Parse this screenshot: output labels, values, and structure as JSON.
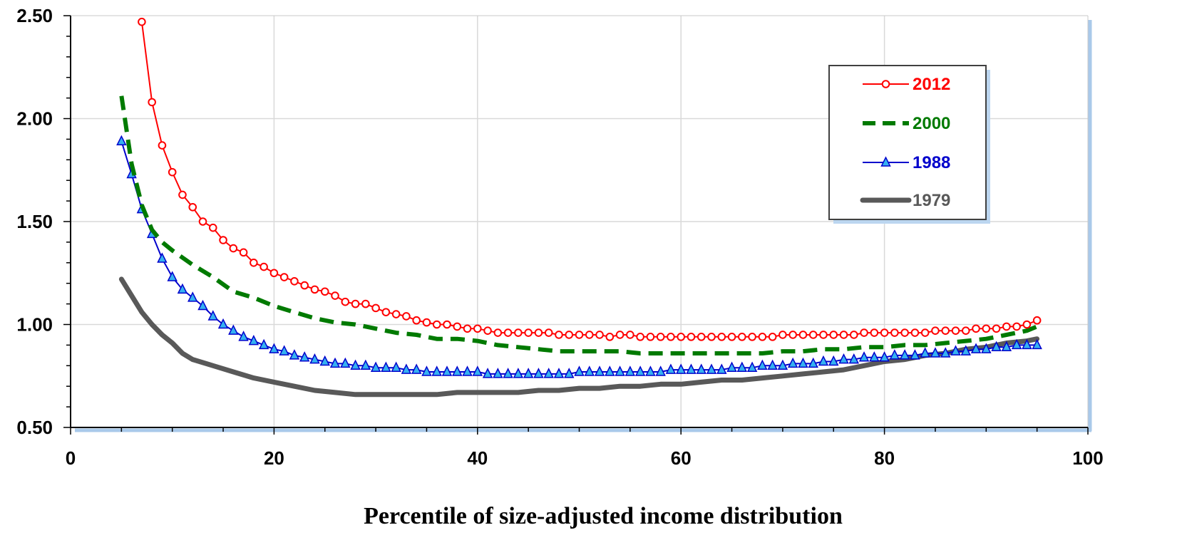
{
  "chart_data": {
    "type": "line",
    "title": "",
    "xlabel": "Percentile of size-adjusted income distribution",
    "ylabel": "",
    "xlim": [
      0,
      100
    ],
    "ylim": [
      0.5,
      2.5
    ],
    "x_ticks": [
      "0",
      "20",
      "40",
      "60",
      "80",
      "100"
    ],
    "y_ticks": [
      "0.50",
      "1.00",
      "1.50",
      "2.00",
      "2.50"
    ],
    "grid": true,
    "legend_position": "top-right",
    "series": [
      {
        "name": "2012",
        "color": "#ff0000",
        "style": "solid-circle-markers",
        "x": [
          7,
          8,
          9,
          10,
          11,
          12,
          13,
          14,
          15,
          16,
          17,
          18,
          19,
          20,
          21,
          22,
          23,
          24,
          25,
          26,
          27,
          28,
          29,
          30,
          31,
          32,
          33,
          34,
          35,
          36,
          37,
          38,
          39,
          40,
          41,
          42,
          43,
          44,
          45,
          46,
          47,
          48,
          49,
          50,
          51,
          52,
          53,
          54,
          55,
          56,
          57,
          58,
          59,
          60,
          61,
          62,
          63,
          64,
          65,
          66,
          67,
          68,
          69,
          70,
          71,
          72,
          73,
          74,
          75,
          76,
          77,
          78,
          79,
          80,
          81,
          82,
          83,
          84,
          85,
          86,
          87,
          88,
          89,
          90,
          91,
          92,
          93,
          94,
          95
        ],
        "values": [
          2.47,
          2.08,
          1.87,
          1.74,
          1.63,
          1.57,
          1.5,
          1.47,
          1.41,
          1.37,
          1.35,
          1.3,
          1.28,
          1.25,
          1.23,
          1.21,
          1.19,
          1.17,
          1.16,
          1.14,
          1.11,
          1.1,
          1.1,
          1.08,
          1.06,
          1.05,
          1.04,
          1.02,
          1.01,
          1.0,
          1.0,
          0.99,
          0.98,
          0.98,
          0.97,
          0.96,
          0.96,
          0.96,
          0.96,
          0.96,
          0.96,
          0.95,
          0.95,
          0.95,
          0.95,
          0.95,
          0.94,
          0.95,
          0.95,
          0.94,
          0.94,
          0.94,
          0.94,
          0.94,
          0.94,
          0.94,
          0.94,
          0.94,
          0.94,
          0.94,
          0.94,
          0.94,
          0.94,
          0.95,
          0.95,
          0.95,
          0.95,
          0.95,
          0.95,
          0.95,
          0.95,
          0.96,
          0.96,
          0.96,
          0.96,
          0.96,
          0.96,
          0.96,
          0.97,
          0.97,
          0.97,
          0.97,
          0.98,
          0.98,
          0.98,
          0.99,
          0.99,
          1.0,
          1.02
        ]
      },
      {
        "name": "2000",
        "color": "#007a00",
        "style": "dashed",
        "x": [
          5,
          6,
          7,
          8,
          9,
          10,
          12,
          14,
          16,
          18,
          20,
          22,
          24,
          26,
          28,
          30,
          32,
          34,
          36,
          38,
          40,
          42,
          44,
          46,
          48,
          50,
          52,
          54,
          56,
          58,
          60,
          62,
          64,
          66,
          68,
          70,
          72,
          74,
          76,
          78,
          80,
          82,
          84,
          86,
          88,
          90,
          92,
          94,
          95
        ],
        "values": [
          2.11,
          1.78,
          1.58,
          1.46,
          1.4,
          1.36,
          1.29,
          1.23,
          1.16,
          1.13,
          1.09,
          1.06,
          1.03,
          1.01,
          1.0,
          0.98,
          0.96,
          0.95,
          0.93,
          0.93,
          0.92,
          0.9,
          0.89,
          0.88,
          0.87,
          0.87,
          0.87,
          0.87,
          0.86,
          0.86,
          0.86,
          0.86,
          0.86,
          0.86,
          0.86,
          0.87,
          0.87,
          0.88,
          0.88,
          0.89,
          0.89,
          0.9,
          0.9,
          0.91,
          0.92,
          0.93,
          0.95,
          0.97,
          0.99
        ]
      },
      {
        "name": "1988",
        "color": "#0000cc",
        "style": "solid-triangle-markers",
        "x": [
          5,
          6,
          7,
          8,
          9,
          10,
          11,
          12,
          13,
          14,
          15,
          16,
          17,
          18,
          19,
          20,
          21,
          22,
          23,
          24,
          25,
          26,
          27,
          28,
          29,
          30,
          31,
          32,
          33,
          34,
          35,
          36,
          37,
          38,
          39,
          40,
          41,
          42,
          43,
          44,
          45,
          46,
          47,
          48,
          49,
          50,
          51,
          52,
          53,
          54,
          55,
          56,
          57,
          58,
          59,
          60,
          61,
          62,
          63,
          64,
          65,
          66,
          67,
          68,
          69,
          70,
          71,
          72,
          73,
          74,
          75,
          76,
          77,
          78,
          79,
          80,
          81,
          82,
          83,
          84,
          85,
          86,
          87,
          88,
          89,
          90,
          91,
          92,
          93,
          94,
          95
        ],
        "values": [
          1.89,
          1.73,
          1.56,
          1.44,
          1.32,
          1.23,
          1.17,
          1.13,
          1.09,
          1.04,
          1.0,
          0.97,
          0.94,
          0.92,
          0.9,
          0.88,
          0.87,
          0.85,
          0.84,
          0.83,
          0.82,
          0.81,
          0.81,
          0.8,
          0.8,
          0.79,
          0.79,
          0.79,
          0.78,
          0.78,
          0.77,
          0.77,
          0.77,
          0.77,
          0.77,
          0.77,
          0.76,
          0.76,
          0.76,
          0.76,
          0.76,
          0.76,
          0.76,
          0.76,
          0.76,
          0.77,
          0.77,
          0.77,
          0.77,
          0.77,
          0.77,
          0.77,
          0.77,
          0.77,
          0.78,
          0.78,
          0.78,
          0.78,
          0.78,
          0.78,
          0.79,
          0.79,
          0.79,
          0.8,
          0.8,
          0.8,
          0.81,
          0.81,
          0.81,
          0.82,
          0.82,
          0.83,
          0.83,
          0.84,
          0.84,
          0.84,
          0.85,
          0.85,
          0.85,
          0.86,
          0.86,
          0.86,
          0.87,
          0.87,
          0.88,
          0.88,
          0.89,
          0.89,
          0.9,
          0.9,
          0.9
        ]
      },
      {
        "name": "1979",
        "color": "#595959",
        "style": "solid-thick",
        "x": [
          5,
          6,
          7,
          8,
          9,
          10,
          11,
          12,
          14,
          16,
          18,
          20,
          22,
          24,
          26,
          28,
          30,
          32,
          34,
          36,
          38,
          40,
          42,
          44,
          46,
          48,
          50,
          52,
          54,
          56,
          58,
          60,
          62,
          64,
          66,
          68,
          70,
          72,
          74,
          76,
          78,
          80,
          82,
          84,
          86,
          88,
          90,
          92,
          94,
          95
        ],
        "values": [
          1.22,
          1.14,
          1.06,
          1.0,
          0.95,
          0.91,
          0.86,
          0.83,
          0.8,
          0.77,
          0.74,
          0.72,
          0.7,
          0.68,
          0.67,
          0.66,
          0.66,
          0.66,
          0.66,
          0.66,
          0.67,
          0.67,
          0.67,
          0.67,
          0.68,
          0.68,
          0.69,
          0.69,
          0.7,
          0.7,
          0.71,
          0.71,
          0.72,
          0.73,
          0.73,
          0.74,
          0.75,
          0.76,
          0.77,
          0.78,
          0.8,
          0.82,
          0.83,
          0.85,
          0.86,
          0.88,
          0.89,
          0.91,
          0.92,
          0.93
        ]
      }
    ]
  }
}
